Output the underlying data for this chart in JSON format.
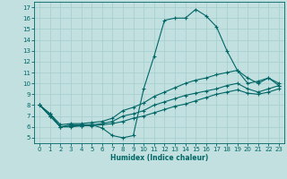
{
  "title": "",
  "xlabel": "Humidex (Indice chaleur)",
  "bg_color": "#c2e0e0",
  "grid_color": "#a8d0d0",
  "line_color": "#006666",
  "xlim": [
    -0.5,
    23.5
  ],
  "ylim": [
    4.5,
    17.5
  ],
  "xticks": [
    0,
    1,
    2,
    3,
    4,
    5,
    6,
    7,
    8,
    9,
    10,
    11,
    12,
    13,
    14,
    15,
    16,
    17,
    18,
    19,
    20,
    21,
    22,
    23
  ],
  "yticks": [
    5,
    6,
    7,
    8,
    9,
    10,
    11,
    12,
    13,
    14,
    15,
    16,
    17
  ],
  "line1_x": [
    0,
    1,
    2,
    3,
    4,
    5,
    6,
    7,
    8,
    9,
    10,
    11,
    12,
    13,
    14,
    15,
    16,
    17,
    18,
    19,
    20,
    21,
    22,
    23
  ],
  "line1_y": [
    8.0,
    7.0,
    6.0,
    6.2,
    6.2,
    6.2,
    5.9,
    5.2,
    5.0,
    5.2,
    9.5,
    12.5,
    15.8,
    16.0,
    16.0,
    16.8,
    16.2,
    15.2,
    13.0,
    11.2,
    10.0,
    10.2,
    10.5,
    9.8
  ],
  "line2_x": [
    0,
    1,
    2,
    3,
    4,
    5,
    6,
    7,
    8,
    9,
    10,
    11,
    12,
    13,
    14,
    15,
    16,
    17,
    18,
    19,
    20,
    21,
    22,
    23
  ],
  "line2_y": [
    8.0,
    7.2,
    6.2,
    6.3,
    6.3,
    6.4,
    6.5,
    6.8,
    7.5,
    7.8,
    8.2,
    8.8,
    9.2,
    9.6,
    10.0,
    10.3,
    10.5,
    10.8,
    11.0,
    11.2,
    10.5,
    10.0,
    10.5,
    10.0
  ],
  "line3_x": [
    0,
    1,
    2,
    3,
    4,
    5,
    6,
    7,
    8,
    9,
    10,
    11,
    12,
    13,
    14,
    15,
    16,
    17,
    18,
    19,
    20,
    21,
    22,
    23
  ],
  "line3_y": [
    8.0,
    7.2,
    6.0,
    6.1,
    6.1,
    6.2,
    6.3,
    6.5,
    7.0,
    7.2,
    7.5,
    8.0,
    8.3,
    8.6,
    8.9,
    9.1,
    9.3,
    9.5,
    9.8,
    10.0,
    9.5,
    9.2,
    9.5,
    9.8
  ],
  "line4_x": [
    0,
    1,
    2,
    3,
    4,
    5,
    6,
    7,
    8,
    9,
    10,
    11,
    12,
    13,
    14,
    15,
    16,
    17,
    18,
    19,
    20,
    21,
    22,
    23
  ],
  "line4_y": [
    8.0,
    7.0,
    6.0,
    6.0,
    6.1,
    6.1,
    6.2,
    6.3,
    6.5,
    6.8,
    7.0,
    7.3,
    7.6,
    7.9,
    8.1,
    8.4,
    8.7,
    9.0,
    9.2,
    9.4,
    9.1,
    9.0,
    9.2,
    9.5
  ]
}
